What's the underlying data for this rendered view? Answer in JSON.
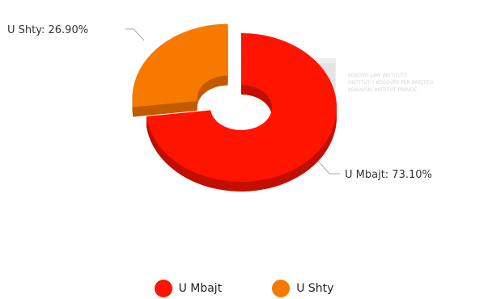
{
  "chart_data": {
    "type": "pie",
    "style": "3d-donut",
    "title": "",
    "slices": [
      {
        "name": "U Mbajt",
        "value": 73.1,
        "label": "U Mbajt: 73.10%",
        "color": "#ff1400",
        "side_color": "#c20f00"
      },
      {
        "name": "U Shty",
        "value": 26.9,
        "label": "U Shty: 26.90%",
        "color": "#f77a00",
        "side_color": "#c25a00"
      }
    ],
    "legend": {
      "placement": "bottom-center",
      "items": [
        "U Mbajt",
        "U Shty"
      ]
    }
  },
  "watermark": {
    "lines": [
      "KOSOVO LAW INSTITUTE",
      "INSTITUTI I KOSOVËS PËR DREJTËSI",
      "KOSOVSKI INSTITUT PRAVDE"
    ],
    "color": "#e8e8e8"
  }
}
